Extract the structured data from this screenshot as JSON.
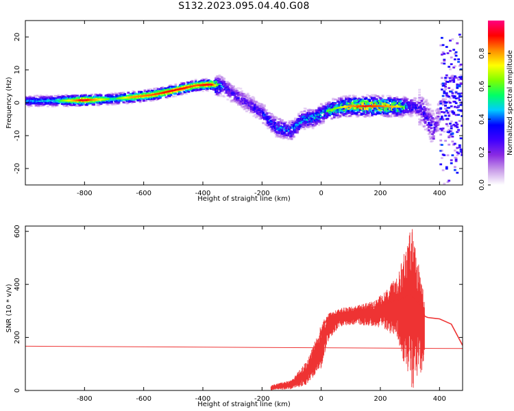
{
  "figure": {
    "title": "S132.2023.095.04.40.G08"
  },
  "chart_data": [
    {
      "type": "heatmap",
      "xlabel": "Height of straight line (km)",
      "ylabel": "Frequency (Hz)",
      "xlim": [
        -1000,
        478
      ],
      "ylim": [
        -25,
        25
      ],
      "xticks": [
        -800,
        -600,
        -400,
        -200,
        0,
        200,
        400
      ],
      "yticks": [
        -20,
        -10,
        0,
        10,
        20
      ],
      "colorbar": {
        "label": "Normalized spectral amplitude",
        "range": [
          0,
          1
        ],
        "ticks": [
          "0.0",
          "0.2",
          "0.4",
          "0.6",
          "0.8"
        ],
        "colors": [
          "#ffffff",
          "#c89be8",
          "#8a2be2",
          "#3f00ff",
          "#0000ff",
          "#00ccff",
          "#00ff66",
          "#7fff00",
          "#ffff00",
          "#ff8c00",
          "#ff0000",
          "#ff0080"
        ]
      },
      "ridge": [
        {
          "x": -1000,
          "f": 0.5,
          "amp": 0.45
        },
        {
          "x": -900,
          "f": 0.6,
          "amp": 0.5
        },
        {
          "x": -800,
          "f": 0.8,
          "amp": 0.95
        },
        {
          "x": -700,
          "f": 1.2,
          "amp": 0.55
        },
        {
          "x": -640,
          "f": 1.7,
          "amp": 0.8
        },
        {
          "x": -570,
          "f": 2.4,
          "amp": 0.85
        },
        {
          "x": -520,
          "f": 3.3,
          "amp": 0.9
        },
        {
          "x": -470,
          "f": 4.3,
          "amp": 0.9
        },
        {
          "x": -420,
          "f": 5.3,
          "amp": 0.85
        },
        {
          "x": -370,
          "f": 5.6,
          "amp": 0.95
        },
        {
          "x": -330,
          "f": 5.0,
          "amp": 0.35
        },
        {
          "x": -300,
          "f": 3.0,
          "amp": 0.3
        },
        {
          "x": -250,
          "f": 0.0,
          "amp": 0.3
        },
        {
          "x": -200,
          "f": -3.0,
          "amp": 0.35
        },
        {
          "x": -150,
          "f": -7.5,
          "amp": 0.45
        },
        {
          "x": -100,
          "f": -8.5,
          "amp": 0.45
        },
        {
          "x": -60,
          "f": -5.0,
          "amp": 0.5
        },
        {
          "x": -20,
          "f": -4.5,
          "amp": 0.5
        },
        {
          "x": 20,
          "f": -2.5,
          "amp": 0.6
        },
        {
          "x": 60,
          "f": -1.5,
          "amp": 0.65
        },
        {
          "x": 100,
          "f": -1.0,
          "amp": 0.8
        },
        {
          "x": 150,
          "f": -1.0,
          "amp": 0.9
        },
        {
          "x": 200,
          "f": -1.0,
          "amp": 0.85
        },
        {
          "x": 260,
          "f": -1.2,
          "amp": 0.75
        },
        {
          "x": 300,
          "f": -1.0,
          "amp": 0.4
        },
        {
          "x": 340,
          "f": -2.0,
          "amp": 0.3
        },
        {
          "x": 380,
          "f": -8.0,
          "amp": 0.3
        },
        {
          "x": 420,
          "f": 0.0,
          "amp": 0.15
        },
        {
          "x": 478,
          "f": 0.0,
          "amp": 0.12
        }
      ]
    },
    {
      "type": "line",
      "xlabel": "Height of straight line (km)",
      "ylabel": "SNR (10 * v/v)",
      "xlim": [
        -1000,
        478
      ],
      "ylim": [
        0,
        620
      ],
      "xticks": [
        -800,
        -600,
        -400,
        -200,
        0,
        200,
        400
      ],
      "yticks": [
        0,
        200,
        400,
        600
      ],
      "color": "#ee3333",
      "series": [
        {
          "x": [
            -1000,
            478
          ],
          "y": [
            167,
            158
          ]
        },
        {
          "x": [
            -170,
            -120,
            -80,
            -40,
            -10,
            0,
            10,
            20,
            40,
            60,
            80,
            120,
            160,
            200,
            240,
            270,
            300,
            320,
            340,
            350,
            360,
            400,
            440,
            478
          ],
          "y": [
            5,
            20,
            40,
            80,
            150,
            220,
            250,
            270,
            285,
            290,
            295,
            300,
            310,
            320,
            335,
            345,
            360,
            340,
            320,
            280,
            275,
            270,
            250,
            170
          ]
        }
      ],
      "envelope": {
        "x": [
          -170,
          -100,
          -50,
          -20,
          0,
          20,
          60,
          120,
          180,
          220,
          260,
          280,
          300,
          310,
          320,
          340,
          350
        ],
        "min": [
          0,
          5,
          20,
          60,
          80,
          180,
          240,
          250,
          240,
          230,
          180,
          100,
          30,
          0,
          50,
          60,
          120
        ],
        "max": [
          20,
          40,
          110,
          190,
          250,
          290,
          310,
          320,
          340,
          380,
          450,
          520,
          600,
          620,
          560,
          420,
          320
        ]
      }
    }
  ]
}
